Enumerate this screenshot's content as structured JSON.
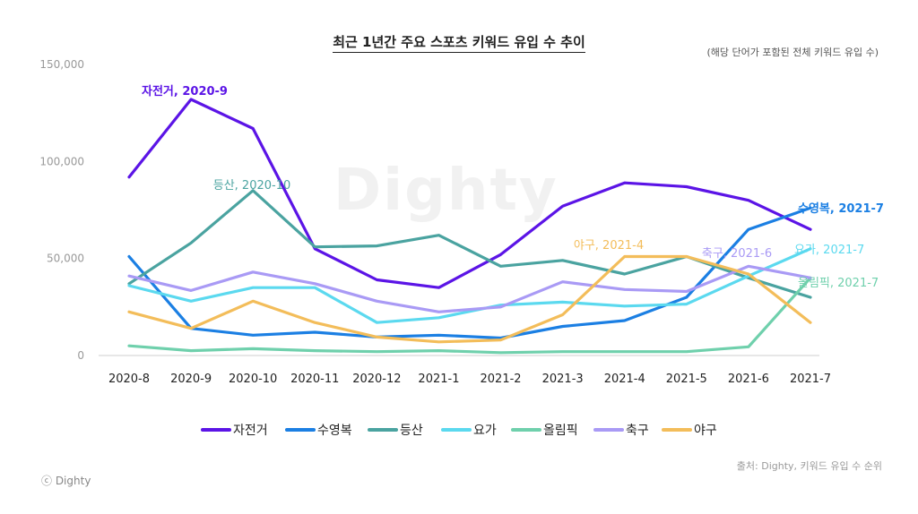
{
  "title": "최근 1년간 주요 스포츠 키워드 유입 수 추이",
  "subtitle": "(해당 단어가 포함된 전체 키워드 유입 수)",
  "watermark": "Dighty",
  "source": "출처: Dighty, 키워드 유입 수 순위",
  "copyright": "ⓒ Dighty",
  "chart_data": {
    "type": "line",
    "title": "최근 1년간 주요 스포츠 키워드 유입 수 추이",
    "xlabel": "",
    "ylabel": "",
    "ylim": [
      0,
      150000
    ],
    "yticks": [
      "0",
      "50,000",
      "100,000",
      "150,000"
    ],
    "yticks_values": [
      0,
      50000,
      100000,
      150000
    ],
    "categories": [
      "2020-8",
      "2020-9",
      "2020-10",
      "2020-11",
      "2020-12",
      "2021-1",
      "2021-2",
      "2021-3",
      "2021-4",
      "2021-5",
      "2021-6",
      "2021-7"
    ],
    "series": [
      {
        "name": "자전거",
        "color": "#5b14e6",
        "values": [
          92000,
          132000,
          117000,
          55000,
          39000,
          35000,
          52000,
          77000,
          89000,
          87000,
          80000,
          65000
        ]
      },
      {
        "name": "수영복",
        "color": "#1b7fe3",
        "values": [
          51000,
          14000,
          10500,
          12000,
          9500,
          10500,
          9000,
          15000,
          18000,
          30000,
          65000,
          76000
        ]
      },
      {
        "name": "등산",
        "color": "#4aa3a0",
        "values": [
          37000,
          58000,
          85000,
          56000,
          56500,
          62000,
          46000,
          49000,
          42000,
          51000,
          40000,
          30000
        ]
      },
      {
        "name": "요가",
        "color": "#5bd9ef",
        "values": [
          36000,
          28000,
          35000,
          35000,
          17000,
          19500,
          26000,
          27500,
          25500,
          26500,
          41000,
          55000
        ]
      },
      {
        "name": "올림픽",
        "color": "#6fd0ac",
        "values": [
          5000,
          2500,
          3500,
          2500,
          2000,
          2500,
          1500,
          2000,
          2000,
          2000,
          4500,
          40000
        ]
      },
      {
        "name": "축구",
        "color": "#a99af5",
        "values": [
          41000,
          33500,
          43000,
          37000,
          28000,
          22500,
          25000,
          38000,
          34000,
          33000,
          46000,
          40000
        ]
      },
      {
        "name": "야구",
        "color": "#f3bd5a",
        "values": [
          22500,
          14000,
          28000,
          17000,
          9500,
          7000,
          8000,
          21000,
          51000,
          51000,
          42000,
          17000
        ]
      }
    ],
    "annotations": [
      {
        "text": "자전거, 2020-9",
        "series": "자전거"
      },
      {
        "text": "등산, 2020-10",
        "series": "등산"
      },
      {
        "text": "야구, 2021-4",
        "series": "야구"
      },
      {
        "text": "축구, 2021-6",
        "series": "축구"
      },
      {
        "text": "수영복, 2021-7",
        "series": "수영복"
      },
      {
        "text": "요가, 2021-7",
        "series": "요가"
      },
      {
        "text": "올림픽, 2021-7",
        "series": "올림픽"
      }
    ],
    "legend_position": "bottom"
  }
}
